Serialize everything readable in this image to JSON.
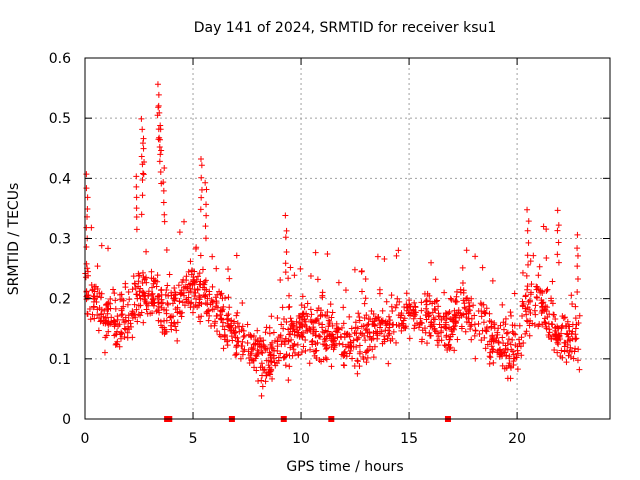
{
  "chart_data": {
    "type": "scatter",
    "title": "Day 141 of 2024, SRMTID for receiver ksu1",
    "xlabel": "GPS time / hours",
    "ylabel": "SRMTID / TECUs",
    "xlim": [
      0,
      24.3
    ],
    "ylim": [
      0,
      0.6
    ],
    "xticks": [
      0,
      5,
      10,
      15,
      20
    ],
    "yticks": [
      0,
      0.1,
      0.2,
      0.3,
      0.4,
      0.5,
      0.6
    ],
    "ytick_labels": [
      "0",
      "0.1",
      "0.2",
      "0.3",
      "0.4",
      "0.5",
      "0.6"
    ],
    "grid": true,
    "marker": "plus",
    "color": "#ff0000",
    "point_count_estimate": 1500,
    "trend_x": [
      0,
      0.3,
      0.8,
      1.5,
      2,
      2.5,
      3,
      3.5,
      4,
      4.5,
      5,
      5.5,
      6,
      6.5,
      7,
      7.5,
      8,
      8.5,
      9,
      9.5,
      10,
      10.5,
      11,
      11.5,
      12,
      12.5,
      13,
      13.5,
      14,
      14.5,
      15,
      15.5,
      16,
      16.5,
      17,
      17.5,
      18,
      18.5,
      19,
      19.5,
      20,
      20.5,
      21,
      21.5,
      22,
      22.5,
      22.9
    ],
    "trend_y": [
      0.22,
      0.21,
      0.17,
      0.16,
      0.17,
      0.2,
      0.21,
      0.19,
      0.18,
      0.2,
      0.22,
      0.21,
      0.19,
      0.16,
      0.14,
      0.12,
      0.1,
      0.11,
      0.12,
      0.14,
      0.15,
      0.15,
      0.14,
      0.14,
      0.13,
      0.13,
      0.14,
      0.15,
      0.16,
      0.17,
      0.18,
      0.17,
      0.16,
      0.15,
      0.16,
      0.18,
      0.16,
      0.15,
      0.12,
      0.11,
      0.12,
      0.19,
      0.2,
      0.15,
      0.14,
      0.13,
      0.14
    ],
    "spikes": [
      {
        "x": 0.1,
        "y": 0.41
      },
      {
        "x": 2.4,
        "y": 0.41
      },
      {
        "x": 2.65,
        "y": 0.5
      },
      {
        "x": 2.7,
        "y": 0.47
      },
      {
        "x": 3.4,
        "y": 0.56
      },
      {
        "x": 3.45,
        "y": 0.53
      },
      {
        "x": 3.5,
        "y": 0.49
      },
      {
        "x": 3.65,
        "y": 0.42
      },
      {
        "x": 5.4,
        "y": 0.44
      },
      {
        "x": 5.6,
        "y": 0.4
      },
      {
        "x": 9.3,
        "y": 0.34
      },
      {
        "x": 20.5,
        "y": 0.35
      },
      {
        "x": 21.9,
        "y": 0.35
      },
      {
        "x": 22.8,
        "y": 0.31
      }
    ],
    "baseline_markers": {
      "type": "square",
      "y": 0,
      "x": [
        3.8,
        3.9,
        6.8,
        9.2,
        11.4,
        16.8
      ]
    }
  }
}
